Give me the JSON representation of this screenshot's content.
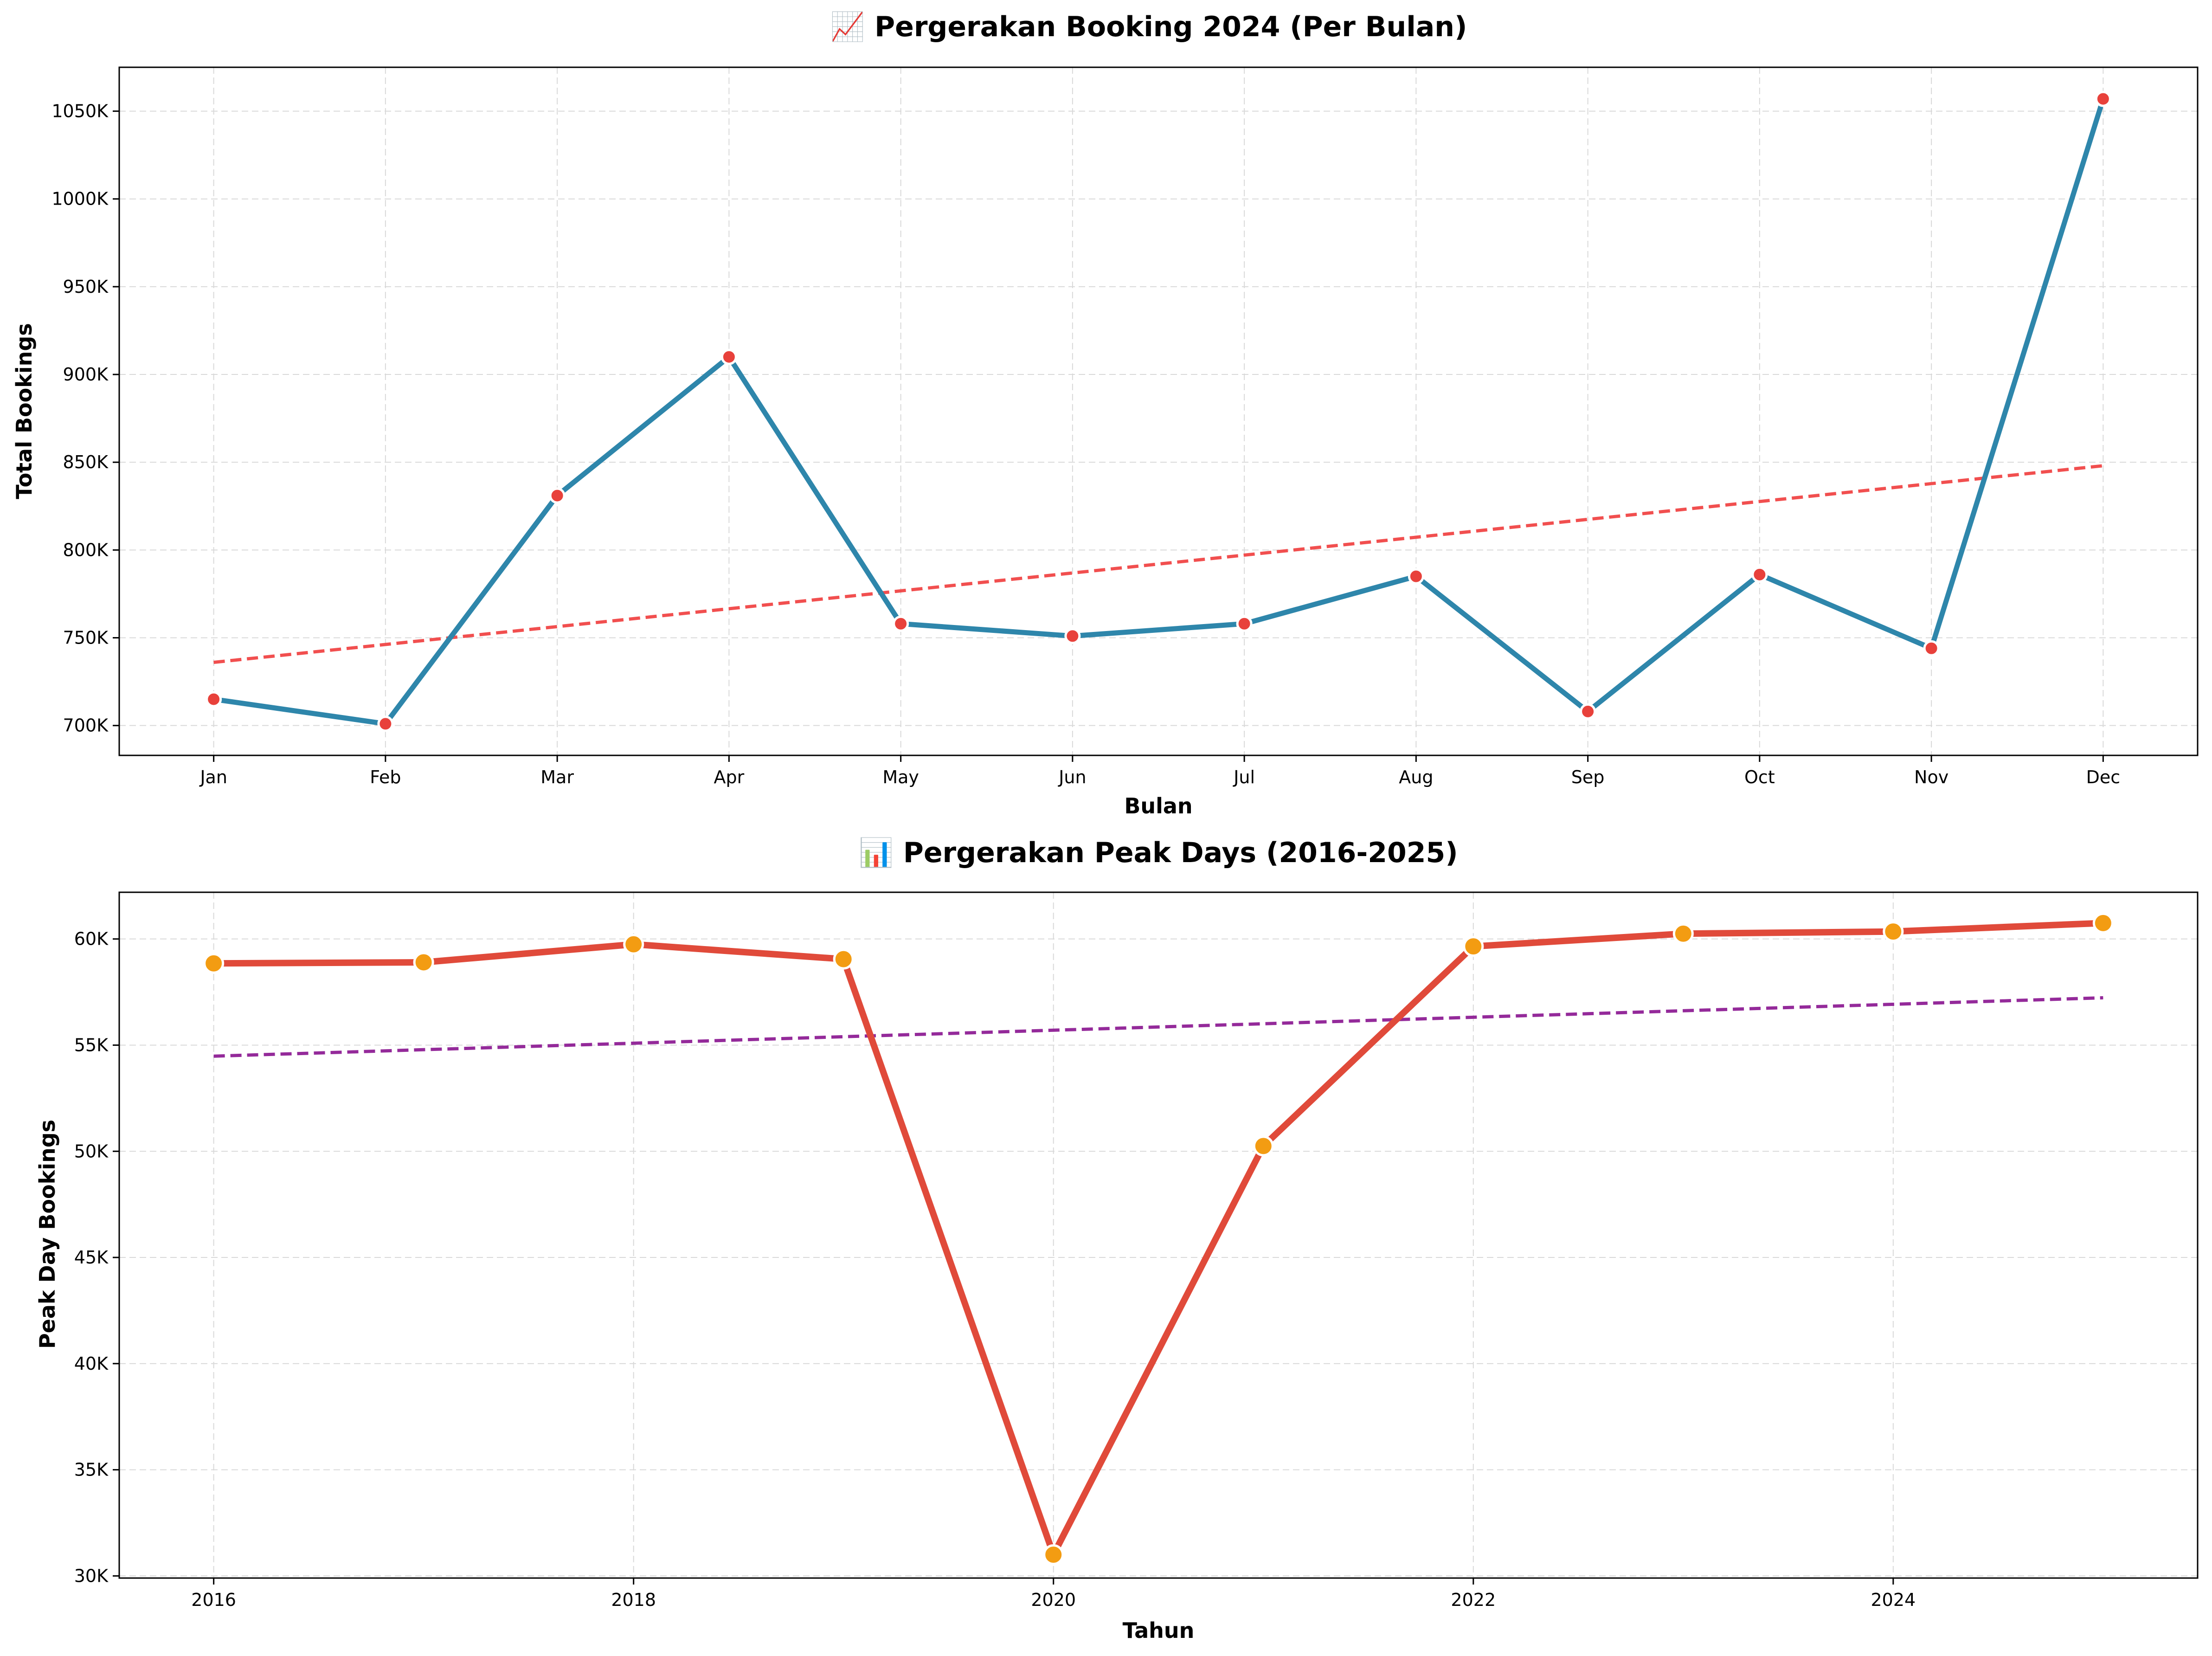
{
  "chart_data": [
    {
      "type": "line",
      "title": "📈 Pergerakan Booking 2024 (Per Bulan)",
      "xlabel": "Bulan",
      "ylabel": "Total Bookings",
      "categories": [
        "Jan",
        "Feb",
        "Mar",
        "Apr",
        "May",
        "Jun",
        "Jul",
        "Aug",
        "Sep",
        "Oct",
        "Nov",
        "Dec"
      ],
      "ylim": [
        683000,
        1075000
      ],
      "yticks": [
        700000,
        750000,
        800000,
        850000,
        900000,
        950000,
        1000000,
        1050000
      ],
      "ytick_labels": [
        "700K",
        "750K",
        "800K",
        "850K",
        "900K",
        "950K",
        "1000K",
        "1050K"
      ],
      "grid": true,
      "series": [
        {
          "values": [
            715000,
            701000,
            831000,
            910000,
            758000,
            751000,
            758000,
            785000,
            708000,
            786000,
            744000,
            1057000
          ],
          "color": "#2e86ab",
          "marker_color": "#e8413b"
        }
      ],
      "trend_line": {
        "start": 736000,
        "end": 848000,
        "color": "#f04646"
      }
    },
    {
      "type": "line",
      "title": "📊 Pergerakan Peak Days (2016-2025)",
      "xlabel": "Tahun",
      "ylabel": "Peak Day Bookings",
      "x": [
        2016,
        2017,
        2018,
        2019,
        2020,
        2021,
        2022,
        2023,
        2024,
        2025
      ],
      "xlim": [
        2015.55,
        2025.45
      ],
      "xticks": [
        2016,
        2018,
        2020,
        2022,
        2024
      ],
      "ylim": [
        29900,
        62200
      ],
      "yticks": [
        30000,
        35000,
        40000,
        45000,
        50000,
        55000,
        60000
      ],
      "ytick_labels": [
        "30K",
        "35K",
        "40K",
        "45K",
        "50K",
        "55K",
        "60K"
      ],
      "grid": true,
      "series": [
        {
          "values": [
            58850,
            58900,
            59750,
            59050,
            31000,
            50250,
            59650,
            60250,
            60350,
            60750
          ],
          "color": "#e04a3a",
          "marker_color": "#f39c12"
        }
      ],
      "trend_line": {
        "start": 54480,
        "end": 57230,
        "color": "#8e1f95"
      }
    }
  ]
}
